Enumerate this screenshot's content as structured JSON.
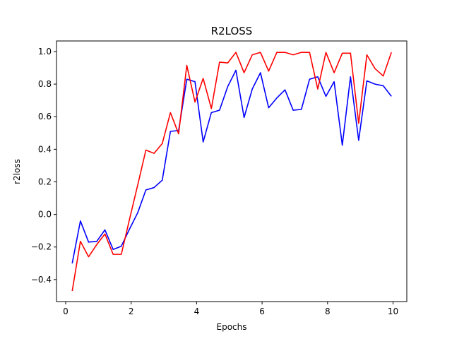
{
  "chart_data": {
    "type": "line",
    "title": "R2LOSS",
    "xlabel": "Epochs",
    "ylabel": "r2loss",
    "xlim": [
      -0.28,
      10.42
    ],
    "ylim": [
      -0.535,
      1.065
    ],
    "xticks": [
      0,
      2,
      4,
      6,
      8,
      10
    ],
    "yticks": [
      -0.4,
      -0.2,
      0.0,
      0.2,
      0.4,
      0.6,
      0.8,
      1.0
    ],
    "ytick_labels": [
      "−0.4",
      "−0.2",
      "0.0",
      "0.2",
      "0.4",
      "0.6",
      "0.8",
      "1.0"
    ],
    "grid": false,
    "legend": "none",
    "x": [
      0.2,
      0.45,
      0.7,
      0.95,
      1.2,
      1.45,
      1.7,
      1.95,
      2.2,
      2.45,
      2.7,
      2.95,
      3.2,
      3.45,
      3.7,
      3.95,
      4.2,
      4.45,
      4.7,
      4.95,
      5.2,
      5.45,
      5.7,
      5.95,
      6.2,
      6.45,
      6.7,
      6.95,
      7.2,
      7.45,
      7.7,
      7.95,
      8.2,
      8.45,
      8.7,
      8.95,
      9.2,
      9.45,
      9.7,
      9.95
    ],
    "series": [
      {
        "color": "#0000ff",
        "values": [
          -0.3,
          -0.04,
          -0.17,
          -0.165,
          -0.095,
          -0.215,
          -0.195,
          -0.09,
          0.01,
          0.15,
          0.165,
          0.21,
          0.51,
          0.515,
          0.83,
          0.815,
          0.445,
          0.625,
          0.64,
          0.785,
          0.885,
          0.595,
          0.77,
          0.87,
          0.655,
          0.715,
          0.765,
          0.64,
          0.645,
          0.83,
          0.845,
          0.725,
          0.815,
          0.425,
          0.845,
          0.455,
          0.82,
          0.8,
          0.79,
          0.725
        ]
      },
      {
        "color": "#ff0000",
        "values": [
          -0.47,
          -0.165,
          -0.26,
          -0.185,
          -0.12,
          -0.245,
          -0.245,
          -0.03,
          0.18,
          0.395,
          0.375,
          0.435,
          0.625,
          0.495,
          0.915,
          0.69,
          0.835,
          0.65,
          0.935,
          0.93,
          0.995,
          0.87,
          0.98,
          0.995,
          0.88,
          0.995,
          0.995,
          0.98,
          0.995,
          0.995,
          0.77,
          0.995,
          0.87,
          0.99,
          0.99,
          0.56,
          0.98,
          0.895,
          0.85,
          0.995
        ]
      }
    ]
  }
}
